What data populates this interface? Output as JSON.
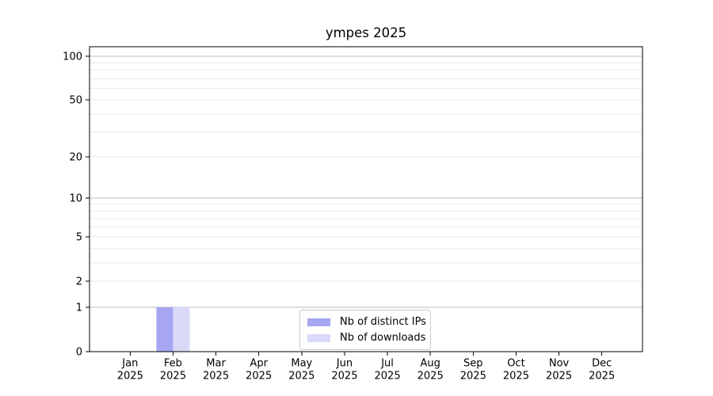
{
  "chart_data": {
    "type": "bar",
    "title": "ympes 2025",
    "xlabel": "",
    "ylabel": "",
    "categories": [
      "Jan 2025",
      "Feb 2025",
      "Mar 2025",
      "Apr 2025",
      "May 2025",
      "Jun 2025",
      "Jul 2025",
      "Aug 2025",
      "Sep 2025",
      "Oct 2025",
      "Nov 2025",
      "Dec 2025"
    ],
    "series": [
      {
        "name": "Nb of distinct IPs",
        "color": "#a6a6f2",
        "values": [
          0,
          1,
          0,
          0,
          0,
          0,
          0,
          0,
          0,
          0,
          0,
          0
        ]
      },
      {
        "name": "Nb of downloads",
        "color": "#d9d9f8",
        "values": [
          0,
          1,
          0,
          0,
          0,
          0,
          0,
          0,
          0,
          0,
          0,
          0
        ]
      }
    ],
    "yticks": [
      0,
      1,
      2,
      5,
      10,
      20,
      50,
      100
    ],
    "major_gridlines": [
      1,
      10,
      100
    ],
    "minor_gridlines": [
      2,
      3,
      4,
      5,
      6,
      7,
      8,
      9,
      20,
      30,
      40,
      50,
      60,
      70,
      80,
      90
    ],
    "scale": "log1p",
    "ylim": [
      0,
      116
    ],
    "grid": true,
    "legend_position": "lower center",
    "colors": {
      "axis": "#000000",
      "major_grid": "#bcbcbc",
      "minor_grid": "#e9e9e9",
      "legend_border": "#cccccc",
      "background": "#ffffff"
    }
  }
}
